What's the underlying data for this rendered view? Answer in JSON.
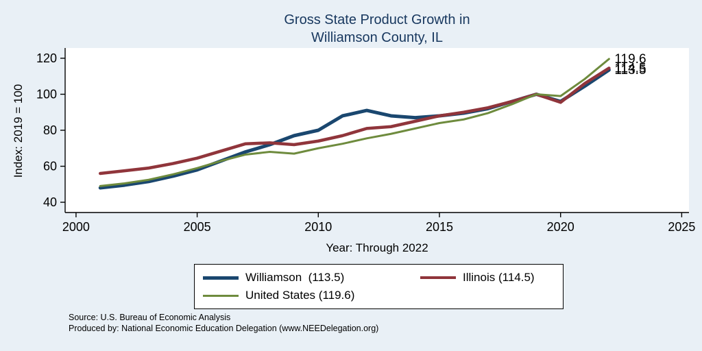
{
  "title": {
    "line1": "Gross State Product Growth in",
    "line2": "Williamson County, IL",
    "color": "#17375e"
  },
  "chart_data": {
    "type": "line",
    "title": "Gross State Product Growth in Williamson County, IL",
    "xlabel": "Year: Through 2022",
    "ylabel": "Index: 2019 = 100",
    "xlim": [
      1999.55,
      2025.3
    ],
    "ylim": [
      34.3,
      125.7
    ],
    "xticks": [
      2000,
      2005,
      2010,
      2015,
      2020,
      2025
    ],
    "yticks": [
      40,
      60,
      80,
      100,
      120
    ],
    "grid": false,
    "legend_position": "bottom",
    "x": [
      2001,
      2002,
      2003,
      2004,
      2005,
      2006,
      2007,
      2008,
      2009,
      2010,
      2011,
      2012,
      2013,
      2014,
      2015,
      2016,
      2017,
      2018,
      2019,
      2020,
      2021,
      2022
    ],
    "series": [
      {
        "name": "Williamson",
        "end_label": "113.5",
        "color": "#1a476f",
        "width": 5,
        "values": [
          48,
          49.5,
          51.5,
          54.5,
          58,
          63,
          68,
          72,
          77,
          80,
          88,
          91,
          88,
          87,
          88,
          89.5,
          92,
          96,
          100,
          96,
          104.5,
          113.5
        ]
      },
      {
        "name": "Illinois",
        "end_label": "114.5",
        "color": "#90353b",
        "width": 4.5,
        "values": [
          56,
          57.5,
          59,
          61.5,
          64.5,
          68.5,
          72.5,
          73,
          72,
          74,
          77,
          81,
          82,
          85,
          88,
          90,
          92.5,
          96,
          100,
          95.5,
          106,
          114.5
        ]
      },
      {
        "name": "United States",
        "end_label": "119.6",
        "color": "#6e8b3d",
        "width": 3,
        "values": [
          49,
          50.5,
          52.5,
          55.5,
          59,
          63,
          66.5,
          68,
          67,
          70,
          72.5,
          75.5,
          78,
          81,
          84,
          86,
          89.5,
          94.5,
          100,
          99,
          108.5,
          119.6
        ]
      }
    ]
  },
  "legend": {
    "items": [
      {
        "label": "Williamson  (113.5)",
        "series": 0
      },
      {
        "label": "Illinois (114.5)",
        "series": 1
      },
      {
        "label": "United States (119.6)",
        "series": 2
      }
    ]
  },
  "footer": {
    "line1": "Source: U.S. Bureau of Economic Analysis",
    "line2": "Produced by: National Economic Education Delegation (www.NEEDelegation.org)"
  }
}
